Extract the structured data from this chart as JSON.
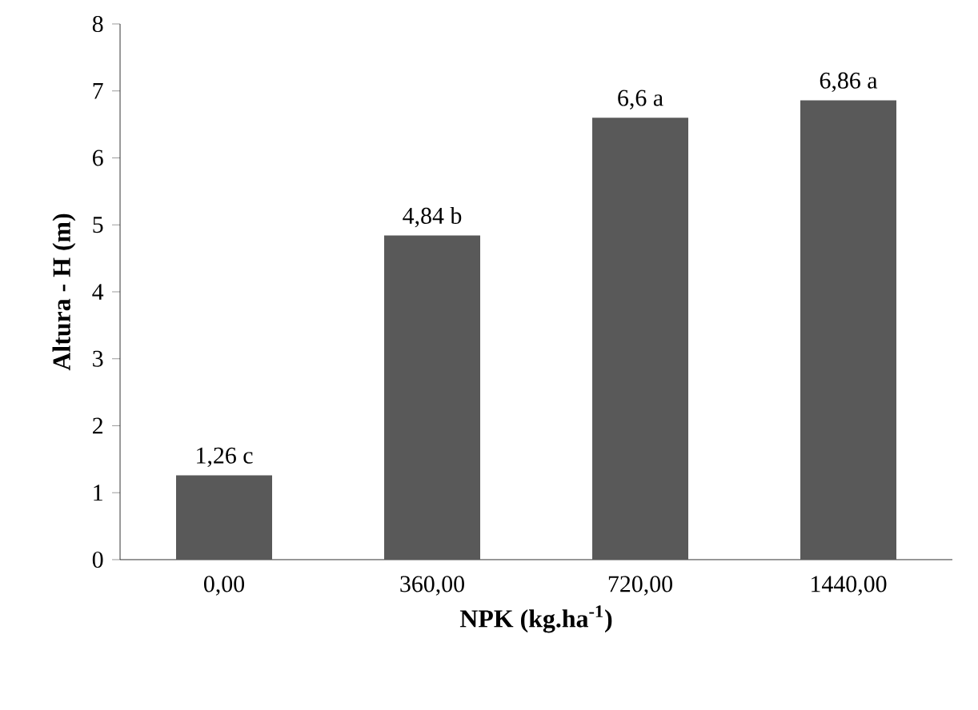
{
  "chart_data": {
    "type": "bar",
    "xlabel": "NPK (kg.ha$^{-1}$)",
    "ylabel": "Altura - H (m)",
    "categories": [
      "0,00",
      "360,00",
      "720,00",
      "1440,00"
    ],
    "values": [
      1.26,
      4.84,
      6.6,
      6.86
    ],
    "value_labels": [
      "1,26 c",
      "4,84 b",
      "6,6 a",
      "6,86 a"
    ],
    "color": "#595959",
    "ylim": [
      0,
      8
    ],
    "yticks": [
      0,
      1,
      2,
      3,
      4,
      5,
      6,
      7,
      8
    ],
    "grid": false
  }
}
